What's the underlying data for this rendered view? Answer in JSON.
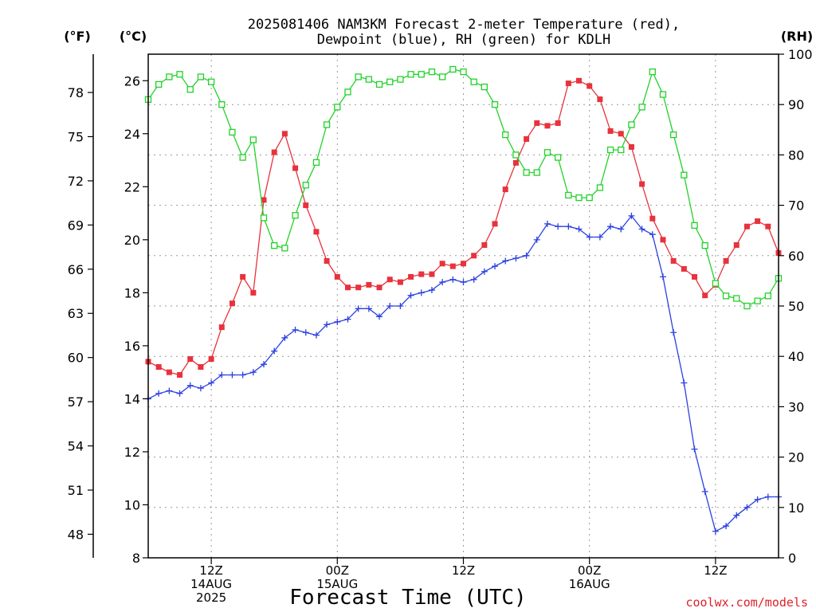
{
  "title": {
    "line1": "2025081406 NAM3KM Forecast 2-meter Temperature (red),",
    "line2": "Dewpoint (blue), RH (green) for KDLH"
  },
  "units": {
    "fahrenheit": "(°F)",
    "celsius": "(°C)",
    "rh": "(RH)"
  },
  "xlabel": "Forecast Time (UTC)",
  "credit": "coolwx.com/models",
  "x_ticks": [
    {
      "hour": 6,
      "line1": "12Z",
      "line2": "14AUG",
      "line3": "2025"
    },
    {
      "hour": 18,
      "line1": "00Z",
      "line2": "15AUG",
      "line3": ""
    },
    {
      "hour": 30,
      "line1": "12Z",
      "line2": "",
      "line3": ""
    },
    {
      "hour": 42,
      "line1": "00Z",
      "line2": "16AUG",
      "line3": ""
    },
    {
      "hour": 54,
      "line1": "12Z",
      "line2": "",
      "line3": ""
    }
  ],
  "chart_data": {
    "type": "line",
    "x_unit": "forecast hour from 2025081406",
    "xlim": [
      0,
      60
    ],
    "y_left_celsius": {
      "ylim": [
        8,
        27
      ],
      "ticks": [
        8,
        10,
        12,
        14,
        16,
        18,
        20,
        22,
        24,
        26
      ]
    },
    "y_left_fahrenheit": {
      "ticks": [
        48,
        51,
        54,
        57,
        60,
        63,
        66,
        69,
        72,
        75,
        78
      ]
    },
    "y_right_rh": {
      "ylim": [
        0,
        100
      ],
      "ticks": [
        0,
        10,
        20,
        30,
        40,
        50,
        60,
        70,
        80,
        90,
        100
      ]
    },
    "grid": true,
    "series": [
      {
        "name": "Temperature",
        "color": "#e8323c",
        "marker": "filled-square",
        "axis": "celsius",
        "x": [
          0,
          1,
          2,
          3,
          4,
          5,
          6,
          7,
          8,
          9,
          10,
          11,
          12,
          13,
          14,
          15,
          16,
          17,
          18,
          19,
          20,
          21,
          22,
          23,
          24,
          25,
          26,
          27,
          28,
          29,
          30,
          31,
          32,
          33,
          34,
          35,
          36,
          37,
          38,
          39,
          40,
          41,
          42,
          43,
          44,
          45,
          46,
          47,
          48,
          49,
          50,
          51,
          52,
          53,
          54,
          55,
          56,
          57,
          58,
          59,
          60
        ],
        "values": [
          15.4,
          15.2,
          15.0,
          14.9,
          15.5,
          15.2,
          15.5,
          16.7,
          17.6,
          18.6,
          18.0,
          21.5,
          23.3,
          24.0,
          22.7,
          21.3,
          20.3,
          19.2,
          18.6,
          18.2,
          18.2,
          18.3,
          18.2,
          18.5,
          18.4,
          18.6,
          18.7,
          18.7,
          19.1,
          19.0,
          19.1,
          19.4,
          19.8,
          20.6,
          21.9,
          22.9,
          23.8,
          24.4,
          24.3,
          24.4,
          25.9,
          26.0,
          25.8,
          25.3,
          24.1,
          24.0,
          23.5,
          22.1,
          20.8,
          20.0,
          19.2,
          18.9,
          18.6,
          17.9,
          18.3,
          19.2,
          19.8,
          20.5,
          20.7,
          20.5,
          19.5
        ]
      },
      {
        "name": "Dewpoint",
        "color": "#2b40e0",
        "marker": "plus",
        "axis": "celsius",
        "x": [
          0,
          1,
          2,
          3,
          4,
          5,
          6,
          7,
          8,
          9,
          10,
          11,
          12,
          13,
          14,
          15,
          16,
          17,
          18,
          19,
          20,
          21,
          22,
          23,
          24,
          25,
          26,
          27,
          28,
          29,
          30,
          31,
          32,
          33,
          34,
          35,
          36,
          37,
          38,
          39,
          40,
          41,
          42,
          43,
          44,
          45,
          46,
          47,
          48,
          49,
          50,
          51,
          52,
          53,
          54,
          55,
          56,
          57,
          58,
          59,
          60
        ],
        "values": [
          14.0,
          14.2,
          14.3,
          14.2,
          14.5,
          14.4,
          14.6,
          14.9,
          14.9,
          14.9,
          15.0,
          15.3,
          15.8,
          16.3,
          16.6,
          16.5,
          16.4,
          16.8,
          16.9,
          17.0,
          17.4,
          17.4,
          17.1,
          17.5,
          17.5,
          17.9,
          18.0,
          18.1,
          18.4,
          18.5,
          18.4,
          18.5,
          18.8,
          19.0,
          19.2,
          19.3,
          19.4,
          20.0,
          20.6,
          20.5,
          20.5,
          20.4,
          20.1,
          20.1,
          20.5,
          20.4,
          20.9,
          20.4,
          20.2,
          18.6,
          16.5,
          14.6,
          12.1,
          10.5,
          9.0,
          9.2,
          9.6,
          9.9,
          10.2,
          10.3,
          10.3
        ]
      },
      {
        "name": "RH",
        "color": "#22d22a",
        "marker": "open-square",
        "axis": "rh",
        "x": [
          0,
          1,
          2,
          3,
          4,
          5,
          6,
          7,
          8,
          9,
          10,
          11,
          12,
          13,
          14,
          15,
          16,
          17,
          18,
          19,
          20,
          21,
          22,
          23,
          24,
          25,
          26,
          27,
          28,
          29,
          30,
          31,
          32,
          33,
          34,
          35,
          36,
          37,
          38,
          39,
          40,
          41,
          42,
          43,
          44,
          45,
          46,
          47,
          48,
          49,
          50,
          51,
          52,
          53,
          54,
          55,
          56,
          57,
          58,
          59,
          60
        ],
        "values": [
          91,
          94,
          95.5,
          96,
          93,
          95.5,
          94.5,
          90,
          84.5,
          79.5,
          83,
          67.5,
          62,
          61.5,
          68,
          74,
          78.5,
          86,
          89.5,
          92.5,
          95.5,
          95,
          94,
          94.5,
          95,
          96,
          96,
          96.5,
          95.5,
          97,
          96.5,
          94.5,
          93.5,
          90,
          84,
          80,
          76.5,
          76.5,
          80.5,
          79.5,
          72,
          71.5,
          71.5,
          73.5,
          81,
          81,
          86,
          89.5,
          96.5,
          92,
          84,
          76,
          66,
          62,
          54.5,
          52,
          51.5,
          50,
          51,
          52,
          55.5
        ]
      }
    ]
  }
}
